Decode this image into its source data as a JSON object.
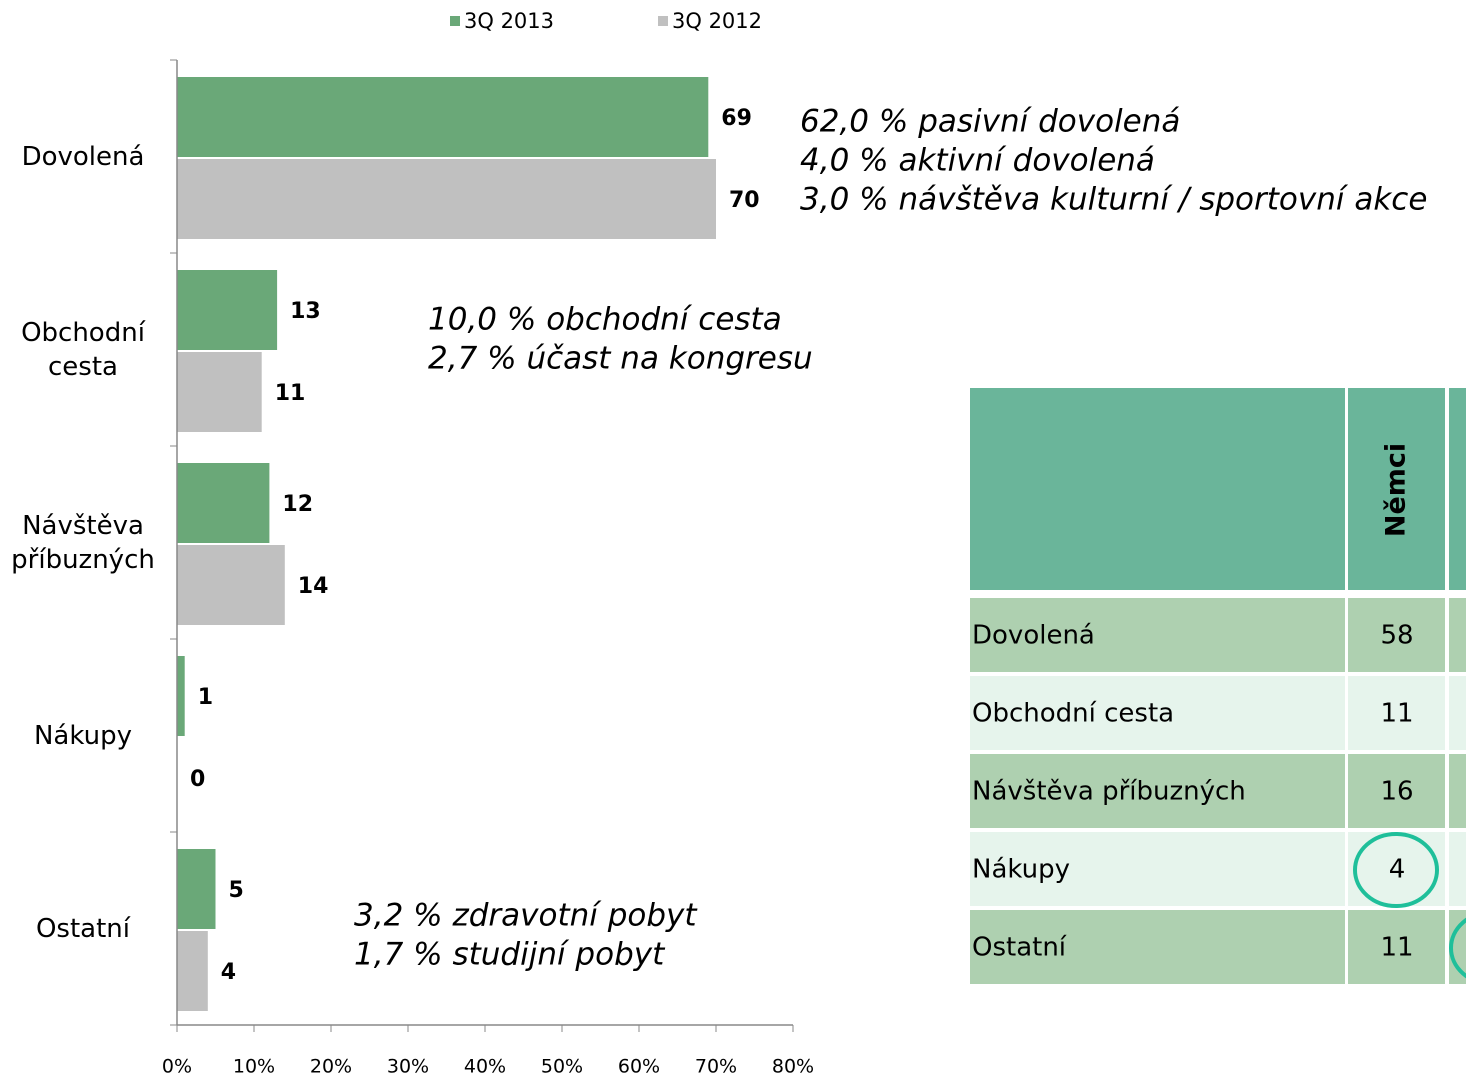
{
  "chart_data": {
    "type": "bar",
    "orientation": "horizontal",
    "categories": [
      "Dovolená",
      "Obchodní cesta",
      "Návštěva příbuzných",
      "Nákupy",
      "Ostatní"
    ],
    "series": [
      {
        "name": "3Q 2013",
        "color": "#6aa878",
        "values": [
          69,
          13,
          12,
          1,
          5
        ]
      },
      {
        "name": "3Q 2012",
        "color": "#c0c0c0",
        "values": [
          70,
          11,
          14,
          0,
          4
        ]
      }
    ],
    "xlim": [
      0,
      80
    ],
    "xticks": [
      {
        "value": 0,
        "label": "0%"
      },
      {
        "value": 10,
        "label": "10%"
      },
      {
        "value": 20,
        "label": "20%"
      },
      {
        "value": 30,
        "label": "30%"
      },
      {
        "value": 40,
        "label": "40%"
      },
      {
        "value": 50,
        "label": "50%"
      },
      {
        "value": 60,
        "label": "60%"
      },
      {
        "value": 70,
        "label": "70%"
      },
      {
        "value": 80,
        "label": "80%"
      }
    ],
    "legend": "top",
    "annotations": [
      [
        "62,0 % pasivní dovolená",
        "4,0 % aktivní dovolená",
        "3,0 % návštěva kulturní / sportovní akce"
      ],
      [
        "10,0 % obchodní cesta",
        "2,7 % účast na kongresu"
      ],
      [
        "3,2 % zdravotní pobyt",
        "1,7 % studijní pobyt"
      ]
    ]
  },
  "table": {
    "columns": [
      "Němci"
    ],
    "rows": [
      [
        "Dovolená",
        58
      ],
      [
        "Obchodní cesta",
        11
      ],
      [
        "Návštěva příbuzných",
        16
      ],
      [
        "Nákupy",
        4
      ],
      [
        "Ostatní",
        11
      ]
    ]
  }
}
